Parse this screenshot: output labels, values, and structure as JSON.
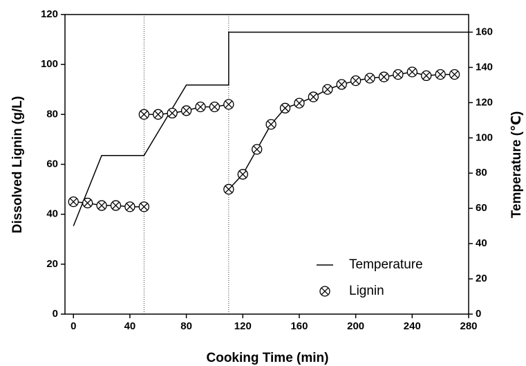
{
  "chart_data": {
    "type": "line",
    "x_label": "Cooking Time (min)",
    "y_label": "Dissolved Lignin (g/L)",
    "y2_label": "Temperature (℃)",
    "xlim": [
      -6,
      280
    ],
    "xticks": [
      0,
      40,
      80,
      120,
      160,
      200,
      240,
      280
    ],
    "ylim": [
      0,
      120
    ],
    "yticks": [
      0,
      20,
      40,
      60,
      80,
      100,
      120
    ],
    "y2lim": [
      0,
      170
    ],
    "y2ticks": [
      0,
      20,
      40,
      60,
      80,
      100,
      120,
      140,
      160
    ],
    "vlines": [
      50,
      110
    ],
    "legend": "lower right",
    "series": [
      {
        "name": "Temperature",
        "color": "#000000",
        "axis": "y2",
        "marker": "none",
        "x": [
          0,
          20,
          50,
          80,
          110,
          110,
          280
        ],
        "values": [
          50,
          90,
          90,
          130,
          130,
          160,
          160
        ]
      },
      {
        "name": "Lignin",
        "color": "#000000",
        "marker": "circle-x",
        "x": [
          0,
          10,
          20,
          30,
          40,
          50,
          null,
          50,
          60,
          70,
          80,
          90,
          100,
          110,
          null,
          110,
          120,
          130,
          140,
          150,
          160,
          170,
          180,
          190,
          200,
          210,
          220,
          230,
          240,
          250,
          260,
          270
        ],
        "values": [
          45,
          44.5,
          43.5,
          43.5,
          43,
          43,
          null,
          80,
          80,
          80.5,
          81.5,
          83,
          83,
          84,
          null,
          50,
          56,
          66,
          76,
          82.5,
          84.5,
          87,
          90,
          92,
          93.5,
          94.5,
          95,
          96,
          97,
          95.5,
          96,
          96
        ]
      }
    ]
  }
}
